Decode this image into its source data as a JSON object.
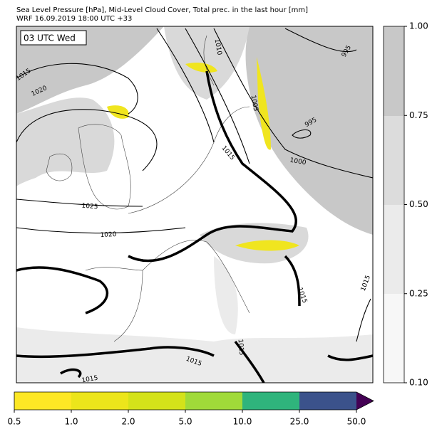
{
  "header": {
    "title_line_1": "Sea Level Pressure [hPa], Mid-Level Cloud Cover, Total prec. in the last hour [mm]",
    "title_line_2": "WRF 16.09.2019 18:00 UTC +33"
  },
  "map": {
    "time_label": "03 UTC Wed",
    "contour_labels": [
      "1015",
      "1020",
      "1010",
      "1005",
      "995",
      "995",
      "1015",
      "1000",
      "1025",
      "1020",
      "1015",
      "1015",
      "1015",
      "1015",
      "1015"
    ]
  },
  "cloud_colorbar": {
    "ticks": [
      "0.10",
      "0.25",
      "0.50",
      "0.75",
      "1.00"
    ]
  },
  "precip_colorbar": {
    "ticks": [
      "0.5",
      "1.0",
      "2.0",
      "5.0",
      "10.0",
      "25.0",
      "50.0"
    ]
  }
}
